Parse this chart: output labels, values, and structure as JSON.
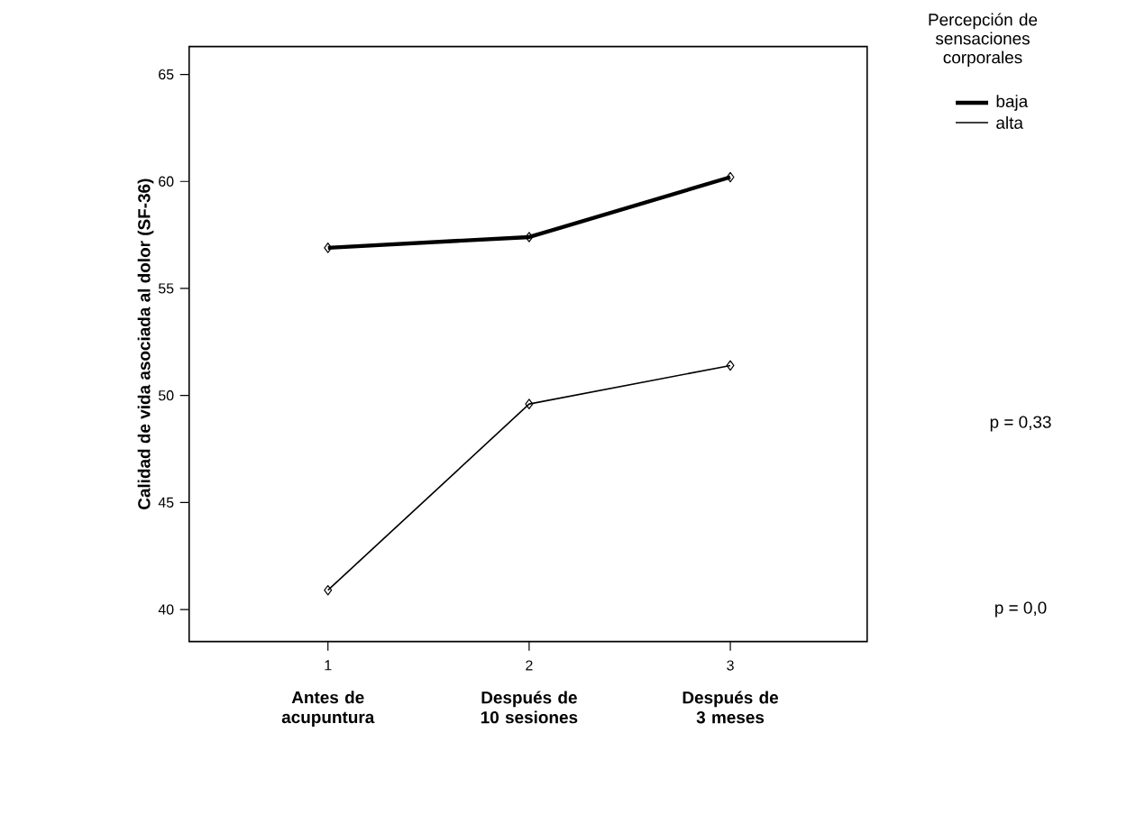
{
  "chart_data": {
    "type": "line",
    "ylabel": "Calidad de vida asociada al dolor (SF-36)",
    "legend_title": "Percepción de sensaciones corporales",
    "categories": [
      "Antes de acupuntura",
      "Después de 10 sesiones",
      "Después de 3 meses"
    ],
    "ylim": [
      38.5,
      66.3
    ],
    "yticks": [
      40,
      45,
      50,
      55,
      60,
      65
    ],
    "series": [
      {
        "name": "baja",
        "color": "#000000",
        "values": [
          56.9,
          57.4,
          60.2
        ]
      },
      {
        "name": "alta",
        "color": "#000000",
        "values": [
          40.9,
          49.6,
          51.4
        ]
      }
    ],
    "marker": "diamond",
    "legend": "top right",
    "grid": false,
    "annotations": [
      "1",
      "2",
      "3",
      "p = 0,33",
      "p = 0,0"
    ]
  }
}
